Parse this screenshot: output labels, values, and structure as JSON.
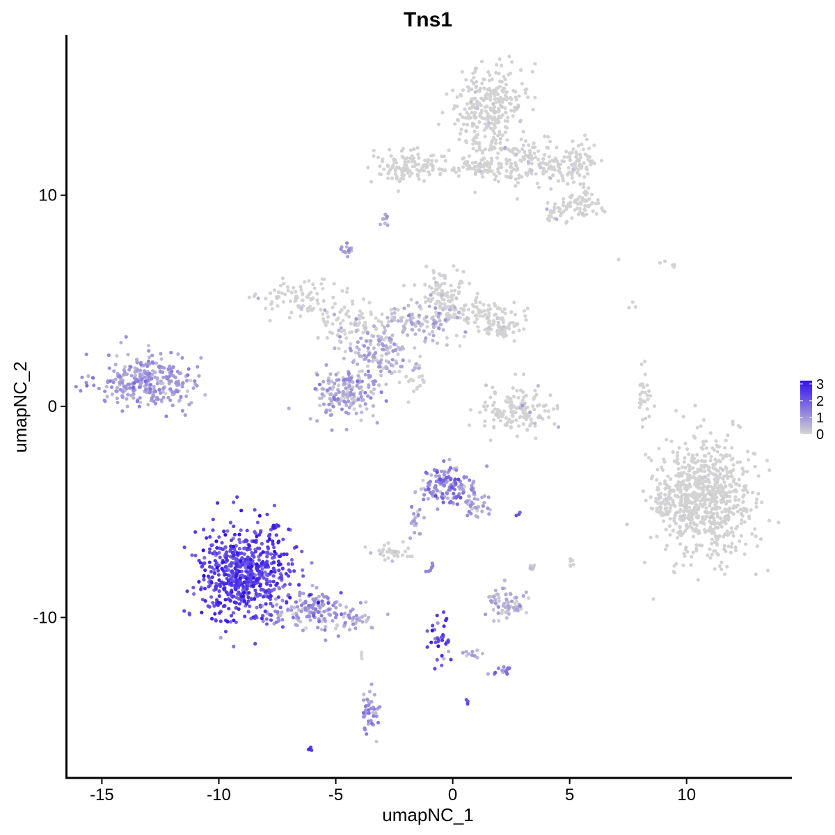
{
  "chart_data": {
    "type": "scatter",
    "title": "Tns1",
    "xlabel": "umapNC_1",
    "ylabel": "umapNC_2",
    "xlim": [
      -16.5,
      14.5
    ],
    "ylim": [
      -17.6,
      17.6
    ],
    "xticks": [
      -15,
      -10,
      -5,
      0,
      5,
      10
    ],
    "yticks": [
      -10,
      0,
      10
    ],
    "color_scale": {
      "low": "#d3d3d3",
      "high": "#3311ee",
      "min": 0,
      "max": 3.2,
      "ticks": [
        0,
        1,
        2,
        3
      ]
    },
    "clusters": [
      {
        "cx": -13.0,
        "cy": 1.2,
        "sx": 1.1,
        "sy": 0.65,
        "n": 300,
        "expr": 0.85,
        "expr_sd": 0.35
      },
      {
        "cx": -8.9,
        "cy": -7.9,
        "sx": 0.95,
        "sy": 1.15,
        "n": 620,
        "expr": 2.3,
        "expr_sd": 0.45
      },
      {
        "cx": -6.0,
        "cy": -9.7,
        "sx": 1.0,
        "sy": 0.45,
        "n": 150,
        "expr": 0.9,
        "expr_sd": 0.45
      },
      {
        "cx": -4.2,
        "cy": -10.2,
        "sx": 0.45,
        "sy": 0.25,
        "n": 30,
        "expr": 0.7,
        "expr_sd": 0.4
      },
      {
        "cx": -4.6,
        "cy": 0.7,
        "sx": 0.75,
        "sy": 0.8,
        "n": 180,
        "expr": 0.6,
        "expr_sd": 0.45
      },
      {
        "cx": -3.2,
        "cy": 2.5,
        "sx": 0.6,
        "sy": 0.6,
        "n": 110,
        "expr": 0.5,
        "expr_sd": 0.4
      },
      {
        "cx": -1.4,
        "cy": 4.0,
        "sx": 0.9,
        "sy": 0.45,
        "n": 110,
        "expr": 0.35,
        "expr_sd": 0.4
      },
      {
        "cx": -6.4,
        "cy": 5.1,
        "sx": 0.9,
        "sy": 0.45,
        "n": 90,
        "expr": 0.1,
        "expr_sd": 0.2
      },
      {
        "cx": -4.3,
        "cy": 3.8,
        "sx": 0.7,
        "sy": 0.5,
        "n": 80,
        "expr": 0.25,
        "expr_sd": 0.3
      },
      {
        "cx": -0.5,
        "cy": 5.4,
        "sx": 0.5,
        "sy": 0.55,
        "n": 80,
        "expr": 0.1,
        "expr_sd": 0.2
      },
      {
        "cx": 1.0,
        "cy": 4.5,
        "sx": 0.8,
        "sy": 0.45,
        "n": 90,
        "expr": 0.15,
        "expr_sd": 0.25
      },
      {
        "cx": 2.0,
        "cy": 3.8,
        "sx": 0.45,
        "sy": 0.3,
        "n": 60,
        "expr": 0.1,
        "expr_sd": 0.2
      },
      {
        "cx": -1.5,
        "cy": 1.4,
        "sx": 0.25,
        "sy": 0.55,
        "n": 25,
        "expr": 0.15,
        "expr_sd": 0.2
      },
      {
        "cx": -4.5,
        "cy": 7.3,
        "sx": 0.12,
        "sy": 0.15,
        "n": 14,
        "expr": 0.8,
        "expr_sd": 0.3
      },
      {
        "cx": -2.9,
        "cy": 8.8,
        "sx": 0.1,
        "sy": 0.15,
        "n": 8,
        "expr": 0.7,
        "expr_sd": 0.3
      },
      {
        "cx": -2.0,
        "cy": 11.3,
        "sx": 0.7,
        "sy": 0.4,
        "n": 110,
        "expr": 0.05,
        "expr_sd": 0.1
      },
      {
        "cx": 0.3,
        "cy": 11.3,
        "sx": 0.9,
        "sy": 0.15,
        "n": 40,
        "expr": 0.05,
        "expr_sd": 0.1
      },
      {
        "cx": 1.6,
        "cy": 14.2,
        "sx": 0.75,
        "sy": 0.9,
        "n": 260,
        "expr": 0.08,
        "expr_sd": 0.15
      },
      {
        "cx": 1.4,
        "cy": 11.8,
        "sx": 0.5,
        "sy": 0.6,
        "n": 70,
        "expr": 0.05,
        "expr_sd": 0.1
      },
      {
        "cx": 3.2,
        "cy": 11.6,
        "sx": 0.7,
        "sy": 0.55,
        "n": 120,
        "expr": 0.15,
        "expr_sd": 0.25
      },
      {
        "cx": 5.2,
        "cy": 11.5,
        "sx": 0.5,
        "sy": 0.45,
        "n": 90,
        "expr": 0.1,
        "expr_sd": 0.2
      },
      {
        "cx": 5.6,
        "cy": 9.6,
        "sx": 0.4,
        "sy": 0.3,
        "n": 60,
        "expr": 0.05,
        "expr_sd": 0.1
      },
      {
        "cx": 4.4,
        "cy": 9.2,
        "sx": 0.3,
        "sy": 0.35,
        "n": 30,
        "expr": 0.15,
        "expr_sd": 0.25
      },
      {
        "cx": 2.8,
        "cy": -0.3,
        "sx": 0.85,
        "sy": 0.55,
        "n": 150,
        "expr": 0.15,
        "expr_sd": 0.25
      },
      {
        "cx": 8.2,
        "cy": 0.4,
        "sx": 0.15,
        "sy": 0.55,
        "n": 28,
        "expr": 0.0,
        "expr_sd": 0.05
      },
      {
        "cx": 10.8,
        "cy": -4.3,
        "sx": 1.05,
        "sy": 1.4,
        "n": 720,
        "expr": 0.02,
        "expr_sd": 0.06
      },
      {
        "cx": 9.0,
        "cy": -4.5,
        "sx": 0.3,
        "sy": 0.4,
        "n": 40,
        "expr": 0.02,
        "expr_sd": 0.06
      },
      {
        "cx": -0.3,
        "cy": -3.7,
        "sx": 0.55,
        "sy": 0.5,
        "n": 140,
        "expr": 1.1,
        "expr_sd": 0.5
      },
      {
        "cx": 0.9,
        "cy": -4.6,
        "sx": 0.35,
        "sy": 0.35,
        "n": 40,
        "expr": 0.8,
        "expr_sd": 0.4
      },
      {
        "cx": -1.6,
        "cy": -5.5,
        "sx": 0.2,
        "sy": 0.55,
        "n": 20,
        "expr": 0.6,
        "expr_sd": 0.3
      },
      {
        "cx": -2.6,
        "cy": -7.0,
        "sx": 0.35,
        "sy": 0.2,
        "n": 35,
        "expr": 0.15,
        "expr_sd": 0.25
      },
      {
        "cx": 2.3,
        "cy": -9.3,
        "sx": 0.4,
        "sy": 0.35,
        "n": 70,
        "expr": 0.45,
        "expr_sd": 0.35
      },
      {
        "cx": -0.5,
        "cy": -11.0,
        "sx": 0.25,
        "sy": 0.75,
        "n": 32,
        "expr": 2.2,
        "expr_sd": 0.5
      },
      {
        "cx": 0.5,
        "cy": -11.8,
        "sx": 0.35,
        "sy": 0.12,
        "n": 12,
        "expr": 0.5,
        "expr_sd": 0.3
      },
      {
        "cx": 2.2,
        "cy": -12.5,
        "sx": 0.3,
        "sy": 0.12,
        "n": 14,
        "expr": 1.3,
        "expr_sd": 0.4
      },
      {
        "cx": -3.5,
        "cy": -14.5,
        "sx": 0.2,
        "sy": 0.55,
        "n": 40,
        "expr": 1.0,
        "expr_sd": 0.35
      },
      {
        "cx": -6.1,
        "cy": -16.2,
        "sx": 0.05,
        "sy": 0.04,
        "n": 4,
        "expr": 2.5,
        "expr_sd": 0.3
      },
      {
        "cx": -7.6,
        "cy": -5.7,
        "sx": 0.06,
        "sy": 0.05,
        "n": 6,
        "expr": 2.8,
        "expr_sd": 0.2
      },
      {
        "cx": 2.8,
        "cy": -5.1,
        "sx": 0.06,
        "sy": 0.05,
        "n": 3,
        "expr": 2.0,
        "expr_sd": 0.3
      },
      {
        "cx": 5.1,
        "cy": -7.4,
        "sx": 0.06,
        "sy": 0.2,
        "n": 8,
        "expr": 0.0,
        "expr_sd": 0.05
      },
      {
        "cx": 3.4,
        "cy": -7.6,
        "sx": 0.06,
        "sy": 0.08,
        "n": 5,
        "expr": 0.3,
        "expr_sd": 0.2
      },
      {
        "cx": 0.6,
        "cy": -14.0,
        "sx": 0.05,
        "sy": 0.05,
        "n": 3,
        "expr": 1.8,
        "expr_sd": 0.3
      },
      {
        "cx": -0.9,
        "cy": -7.8,
        "sx": 0.15,
        "sy": 0.25,
        "n": 8,
        "expr": 1.2,
        "expr_sd": 0.5
      },
      {
        "cx": -3.9,
        "cy": -11.8,
        "sx": 0.04,
        "sy": 0.1,
        "n": 3,
        "expr": 0.0,
        "expr_sd": 0.05
      },
      {
        "cx": 9.3,
        "cy": 6.7,
        "sx": 0.4,
        "sy": 0.2,
        "n": 5,
        "expr": 0.0,
        "expr_sd": 0.05
      },
      {
        "cx": 7.0,
        "cy": 6.9,
        "sx": 0.05,
        "sy": 0.05,
        "n": 1,
        "expr": 0.0,
        "expr_sd": 0.05
      },
      {
        "cx": 7.7,
        "cy": 4.8,
        "sx": 0.06,
        "sy": 0.12,
        "n": 3,
        "expr": 0.0,
        "expr_sd": 0.05
      }
    ]
  }
}
